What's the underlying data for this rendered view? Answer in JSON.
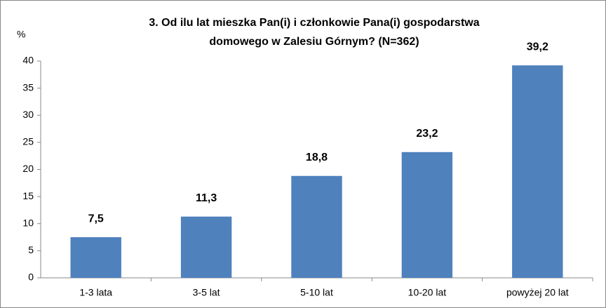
{
  "chart_data": {
    "type": "bar",
    "title": [
      "3. Od ilu lat mieszka Pan(i) i członkowie Pana(i) gospodarstwa",
      "domowego w Zalesiu Górnym? (N=362)"
    ],
    "y_label": "%",
    "categories": [
      "1-3 lata",
      "3-5 lat",
      "5-10 lat",
      "10-20 lat",
      "powyżej 20 lat"
    ],
    "values": [
      7.5,
      11.3,
      18.8,
      23.2,
      39.2
    ],
    "value_labels": [
      "7,5",
      "11,3",
      "18,8",
      "23,2",
      "39,2"
    ],
    "color": "#4f81bd",
    "ylim": [
      0,
      40
    ],
    "yticks": [
      0,
      5,
      10,
      15,
      20,
      25,
      30,
      35,
      40
    ],
    "grid": false
  }
}
